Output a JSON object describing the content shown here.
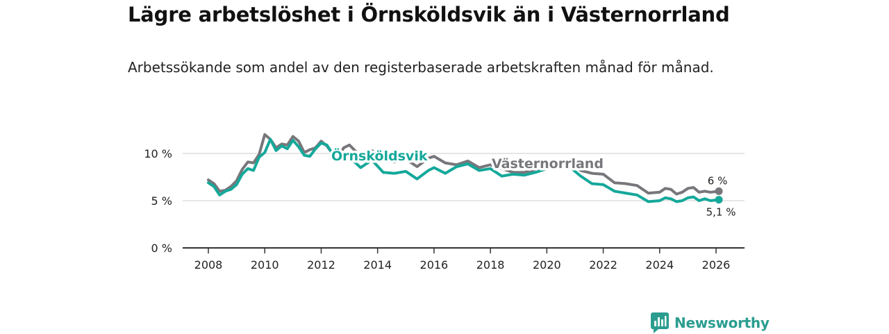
{
  "header": {
    "title": "Lägre arbetslöshet i Örnsköldsvik än i Västernorrland",
    "subtitle": "Arbetssökande som andel av den registerbaserade arbetskraften månad för månad."
  },
  "brand": {
    "name": "Newsworthy"
  },
  "colors": {
    "ornskoldsvik": "#14a89a",
    "vasternorrland": "#77777b",
    "grid": "#d6d6d6",
    "axis": "#333333"
  },
  "chart_data": {
    "type": "line",
    "title": "Lägre arbetslöshet i Örnsköldsvik än i Västernorrland",
    "subtitle": "Arbetssökande som andel av den registerbaserade arbetskraften månad för månad.",
    "xlabel": "",
    "ylabel": "",
    "x_ticks": [
      "2008",
      "2010",
      "2012",
      "2014",
      "2016",
      "2018",
      "2020",
      "2022",
      "2024",
      "2026"
    ],
    "y_ticks": [
      "0 %",
      "5 %",
      "10 %"
    ],
    "xlim": [
      2007.5,
      2027.0
    ],
    "ylim": [
      0,
      10
    ],
    "legend": "inline labels",
    "series": [
      {
        "name": "Västernorrland",
        "end_label": "6 %",
        "points": [
          [
            2008.0,
            7.2
          ],
          [
            2008.2,
            6.8
          ],
          [
            2008.4,
            6.0
          ],
          [
            2008.6,
            6.1
          ],
          [
            2008.8,
            6.5
          ],
          [
            2009.0,
            7.1
          ],
          [
            2009.2,
            8.3
          ],
          [
            2009.4,
            9.1
          ],
          [
            2009.6,
            9.0
          ],
          [
            2009.8,
            9.9
          ],
          [
            2010.0,
            12.0
          ],
          [
            2010.2,
            11.5
          ],
          [
            2010.4,
            10.6
          ],
          [
            2010.6,
            11.0
          ],
          [
            2010.8,
            10.9
          ],
          [
            2011.0,
            11.8
          ],
          [
            2011.2,
            11.3
          ],
          [
            2011.4,
            10.1
          ],
          [
            2011.6,
            10.4
          ],
          [
            2011.8,
            10.6
          ],
          [
            2012.0,
            11.3
          ],
          [
            2012.2,
            10.8
          ],
          [
            2012.4,
            10.0
          ],
          [
            2012.6,
            9.6
          ],
          [
            2012.8,
            10.6
          ],
          [
            2013.0,
            10.9
          ],
          [
            2013.4,
            9.7
          ],
          [
            2013.8,
            10.3
          ],
          [
            2014.2,
            9.5
          ],
          [
            2014.6,
            9.1
          ],
          [
            2015.0,
            9.4
          ],
          [
            2015.4,
            8.6
          ],
          [
            2015.8,
            9.5
          ],
          [
            2016.0,
            9.7
          ],
          [
            2016.4,
            9.0
          ],
          [
            2016.8,
            8.8
          ],
          [
            2017.2,
            9.2
          ],
          [
            2017.6,
            8.5
          ],
          [
            2018.0,
            8.8
          ],
          [
            2018.4,
            8.4
          ],
          [
            2018.8,
            8.0
          ],
          [
            2019.2,
            8.0
          ],
          [
            2019.6,
            8.3
          ],
          [
            2020.0,
            8.6
          ],
          [
            2020.4,
            9.0
          ],
          [
            2020.8,
            8.9
          ],
          [
            2021.2,
            8.2
          ],
          [
            2021.6,
            7.9
          ],
          [
            2022.0,
            7.8
          ],
          [
            2022.4,
            6.9
          ],
          [
            2022.8,
            6.8
          ],
          [
            2023.2,
            6.6
          ],
          [
            2023.6,
            5.8
          ],
          [
            2024.0,
            5.9
          ],
          [
            2024.2,
            6.3
          ],
          [
            2024.4,
            6.2
          ],
          [
            2024.6,
            5.7
          ],
          [
            2024.8,
            5.9
          ],
          [
            2025.0,
            6.3
          ],
          [
            2025.2,
            6.4
          ],
          [
            2025.4,
            5.9
          ],
          [
            2025.6,
            6.0
          ],
          [
            2025.8,
            5.9
          ],
          [
            2026.1,
            6.0
          ]
        ]
      },
      {
        "name": "Örnsköldsvik",
        "end_label": "5,1 %",
        "points": [
          [
            2008.0,
            6.9
          ],
          [
            2008.2,
            6.5
          ],
          [
            2008.4,
            5.6
          ],
          [
            2008.6,
            6.0
          ],
          [
            2008.8,
            6.2
          ],
          [
            2009.0,
            6.7
          ],
          [
            2009.2,
            7.8
          ],
          [
            2009.4,
            8.4
          ],
          [
            2009.6,
            8.2
          ],
          [
            2009.8,
            9.6
          ],
          [
            2010.0,
            10.1
          ],
          [
            2010.2,
            11.5
          ],
          [
            2010.4,
            10.3
          ],
          [
            2010.6,
            10.8
          ],
          [
            2010.8,
            10.5
          ],
          [
            2011.0,
            11.4
          ],
          [
            2011.2,
            10.7
          ],
          [
            2011.4,
            9.8
          ],
          [
            2011.6,
            9.7
          ],
          [
            2011.8,
            10.5
          ],
          [
            2012.0,
            11.1
          ],
          [
            2012.2,
            10.9
          ],
          [
            2012.4,
            10.0
          ],
          [
            2012.6,
            9.5
          ],
          [
            2012.8,
            9.9
          ],
          [
            2013.0,
            9.6
          ],
          [
            2013.4,
            8.5
          ],
          [
            2013.8,
            9.3
          ],
          [
            2014.2,
            8.0
          ],
          [
            2014.6,
            7.9
          ],
          [
            2015.0,
            8.1
          ],
          [
            2015.4,
            7.3
          ],
          [
            2015.8,
            8.2
          ],
          [
            2016.0,
            8.5
          ],
          [
            2016.4,
            7.9
          ],
          [
            2016.8,
            8.6
          ],
          [
            2017.2,
            8.9
          ],
          [
            2017.6,
            8.2
          ],
          [
            2018.0,
            8.4
          ],
          [
            2018.4,
            7.6
          ],
          [
            2018.8,
            7.8
          ],
          [
            2019.2,
            7.7
          ],
          [
            2019.6,
            8.0
          ],
          [
            2020.0,
            8.4
          ],
          [
            2020.4,
            8.8
          ],
          [
            2020.8,
            8.6
          ],
          [
            2021.2,
            7.6
          ],
          [
            2021.6,
            6.8
          ],
          [
            2022.0,
            6.7
          ],
          [
            2022.4,
            6.0
          ],
          [
            2022.8,
            5.8
          ],
          [
            2023.2,
            5.6
          ],
          [
            2023.6,
            4.9
          ],
          [
            2024.0,
            5.0
          ],
          [
            2024.2,
            5.3
          ],
          [
            2024.4,
            5.2
          ],
          [
            2024.6,
            4.9
          ],
          [
            2024.8,
            5.0
          ],
          [
            2025.0,
            5.3
          ],
          [
            2025.2,
            5.4
          ],
          [
            2025.4,
            5.0
          ],
          [
            2025.6,
            5.2
          ],
          [
            2025.8,
            5.0
          ],
          [
            2026.1,
            5.1
          ]
        ]
      }
    ]
  }
}
